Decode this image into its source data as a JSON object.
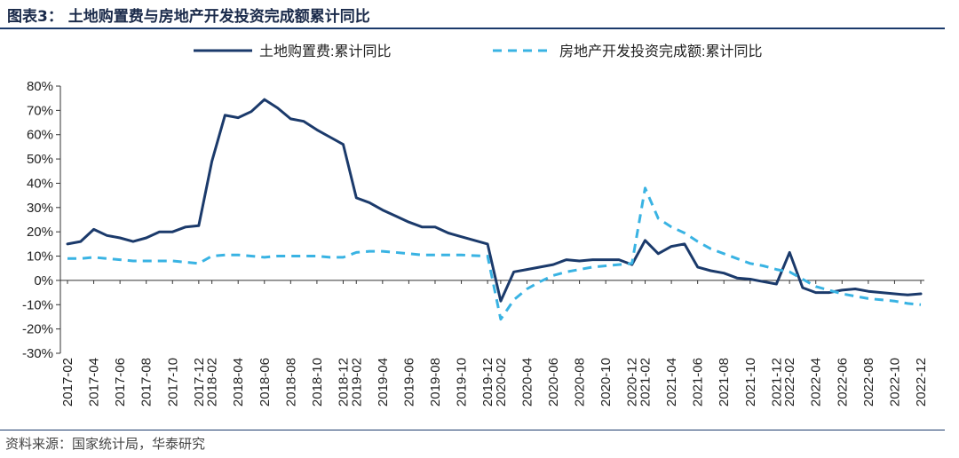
{
  "header": {
    "title": "图表3：  土地购置费与房地产开发投资完成额累计同比"
  },
  "footer": {
    "source": "资料来源：国家统计局，华泰研究"
  },
  "chart_data": {
    "type": "line",
    "title": "",
    "xlabel": "",
    "ylabel": "",
    "ylim": [
      -30,
      80
    ],
    "yticks": [
      "80%",
      "70%",
      "60%",
      "50%",
      "40%",
      "30%",
      "20%",
      "10%",
      "0%",
      "-10%",
      "-20%",
      "-30%"
    ],
    "grid": false,
    "legend": "top",
    "x": [
      "2017-02",
      "2017-03",
      "2017-04",
      "2017-05",
      "2017-06",
      "2017-07",
      "2017-08",
      "2017-09",
      "2017-10",
      "2017-11",
      "2017-12",
      "2018-02",
      "2018-03",
      "2018-04",
      "2018-05",
      "2018-06",
      "2018-07",
      "2018-08",
      "2018-09",
      "2018-10",
      "2018-11",
      "2018-12",
      "2019-02",
      "2019-03",
      "2019-04",
      "2019-05",
      "2019-06",
      "2019-07",
      "2019-08",
      "2019-09",
      "2019-10",
      "2019-11",
      "2019-12",
      "2020-02",
      "2020-03",
      "2020-04",
      "2020-05",
      "2020-06",
      "2020-07",
      "2020-08",
      "2020-09",
      "2020-10",
      "2020-11",
      "2020-12",
      "2021-02",
      "2021-03",
      "2021-04",
      "2021-05",
      "2021-06",
      "2021-07",
      "2021-08",
      "2021-09",
      "2021-10",
      "2021-11",
      "2021-12",
      "2022-02",
      "2022-03",
      "2022-04",
      "2022-05",
      "2022-06",
      "2022-07",
      "2022-08",
      "2022-09",
      "2022-10",
      "2022-11",
      "2022-12"
    ],
    "xtick_labels": [
      "2017-02",
      "2017-04",
      "2017-06",
      "2017-08",
      "2017-10",
      "2017-12",
      "2018-02",
      "2018-04",
      "2018-06",
      "2018-08",
      "2018-10",
      "2018-12",
      "2019-02",
      "2019-04",
      "2019-06",
      "2019-08",
      "2019-10",
      "2019-12",
      "2020-02",
      "2020-04",
      "2020-06",
      "2020-08",
      "2020-10",
      "2020-12",
      "2021-02",
      "2021-04",
      "2021-06",
      "2021-08",
      "2021-10",
      "2021-12",
      "2022-02",
      "2022-04",
      "2022-06",
      "2022-08",
      "2022-10",
      "2022-12"
    ],
    "series": [
      {
        "name": "土地购置费:累计同比",
        "color": "#1b3a6b",
        "dash": "solid",
        "values": [
          15,
          16,
          21,
          18.5,
          17.5,
          16,
          17.5,
          20,
          20,
          22,
          22.5,
          49,
          68,
          67,
          69.5,
          74.5,
          71,
          66.5,
          65.5,
          62,
          59,
          56,
          34,
          32,
          29,
          26.5,
          24,
          22,
          22,
          19.5,
          18,
          16.5,
          15,
          -8.5,
          3.5,
          4.5,
          5.5,
          6.5,
          8.5,
          8,
          8.5,
          8.5,
          8.5,
          6.5,
          16.5,
          11,
          14,
          15,
          5.5,
          4,
          3,
          1,
          0.5,
          -0.5,
          -1.5,
          11.5,
          -3,
          -5,
          -5,
          -4,
          -3.5,
          -4.5,
          -5,
          -5.5,
          -6,
          -5.5
        ]
      },
      {
        "name": "房地产开发投资完成额:累计同比",
        "color": "#39b3e3",
        "dash": "dashed",
        "values": [
          9,
          9,
          9.5,
          9,
          8.5,
          8,
          8,
          8,
          8,
          7.5,
          7,
          10,
          10.5,
          10.5,
          10,
          9.5,
          10,
          10,
          10,
          10,
          9.5,
          9.5,
          11.5,
          12,
          12,
          11.5,
          11,
          10.5,
          10.5,
          10.5,
          10.5,
          10.2,
          10,
          -16,
          -8,
          -3.5,
          -0.5,
          2,
          3.5,
          4.5,
          5.5,
          6,
          6.5,
          7,
          38,
          25.5,
          22,
          19.5,
          16,
          13,
          11,
          9,
          7,
          6,
          4.5,
          3.5,
          0.5,
          -2.5,
          -4,
          -5.5,
          -6.5,
          -7.5,
          -8,
          -8.5,
          -9.5,
          -10
        ]
      }
    ]
  }
}
